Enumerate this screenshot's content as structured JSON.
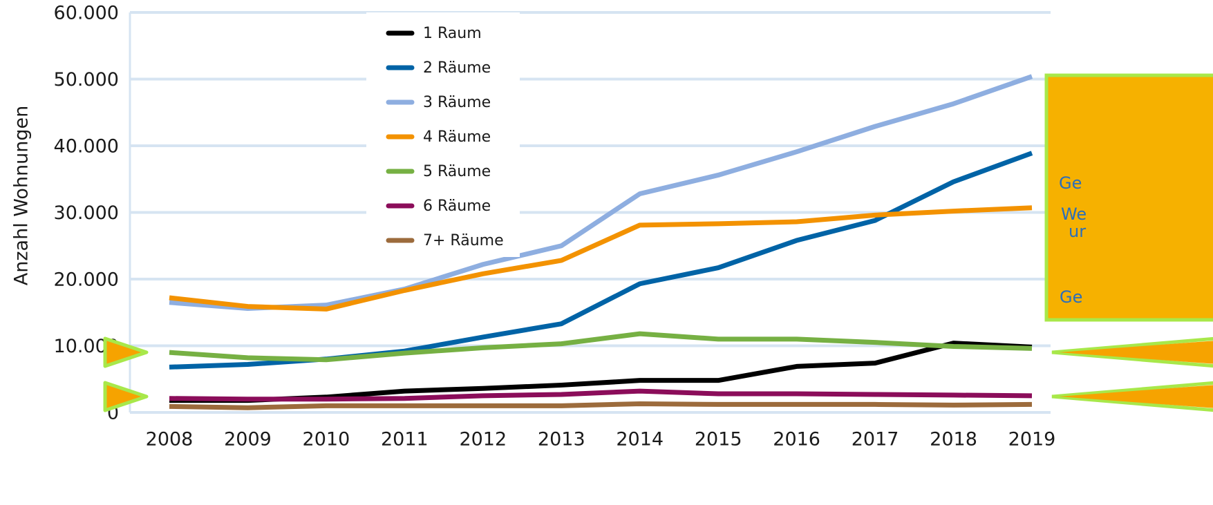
{
  "chart_data": {
    "type": "line",
    "y_label": "Anzahl Wohnungen",
    "categories": [
      "2008",
      "2009",
      "2010",
      "2011",
      "2012",
      "2013",
      "2014",
      "2015",
      "2016",
      "2017",
      "2018",
      "2019"
    ],
    "series": [
      {
        "name": "1 Raum",
        "color": "#000000",
        "values": [
          1800,
          1800,
          2300,
          3200,
          3600,
          4100,
          4800,
          4800,
          6900,
          7400,
          10400,
          9800
        ]
      },
      {
        "name": "2 Räume",
        "color": "#0063a6",
        "values": [
          6800,
          7200,
          8000,
          9200,
          11300,
          13300,
          19300,
          21700,
          25800,
          28800,
          34600,
          38900
        ]
      },
      {
        "name": "3 Räume",
        "color": "#8eaee0",
        "values": [
          16500,
          15600,
          16100,
          18500,
          22200,
          25000,
          32800,
          35600,
          39100,
          42900,
          46300,
          50400
        ]
      },
      {
        "name": "4 Räume",
        "color": "#f39200",
        "values": [
          17200,
          15900,
          15500,
          18300,
          20800,
          22800,
          28100,
          28300,
          28600,
          29600,
          30200,
          30700
        ]
      },
      {
        "name": "5 Räume",
        "color": "#76b043",
        "values": [
          9000,
          8200,
          7900,
          8900,
          9700,
          10300,
          11800,
          11000,
          11000,
          10500,
          9900,
          9600
        ]
      },
      {
        "name": "6 Räume",
        "color": "#8b0d5a",
        "values": [
          2100,
          2000,
          2000,
          2100,
          2500,
          2700,
          3200,
          2800,
          2800,
          2700,
          2600,
          2500
        ]
      },
      {
        "name": "7+ Räume",
        "color": "#9c6b3c",
        "values": [
          900,
          700,
          1000,
          1000,
          1000,
          1000,
          1300,
          1200,
          1200,
          1200,
          1100,
          1200
        ]
      }
    ],
    "ylim": [
      0,
      60000
    ],
    "yticks": [
      0,
      {
        "value": 10000,
        "label": "10.000"
      },
      {
        "value": 20000,
        "label": "20.000"
      },
      {
        "value": 30000,
        "label": "30.000"
      },
      {
        "value": 40000,
        "label": "40.000"
      },
      {
        "value": 50000,
        "label": "50.000"
      },
      {
        "value": 60000,
        "label": "60.000"
      }
    ],
    "grid": true,
    "annotations": [
      "Ge",
      "We",
      "ur",
      "Ge"
    ]
  }
}
